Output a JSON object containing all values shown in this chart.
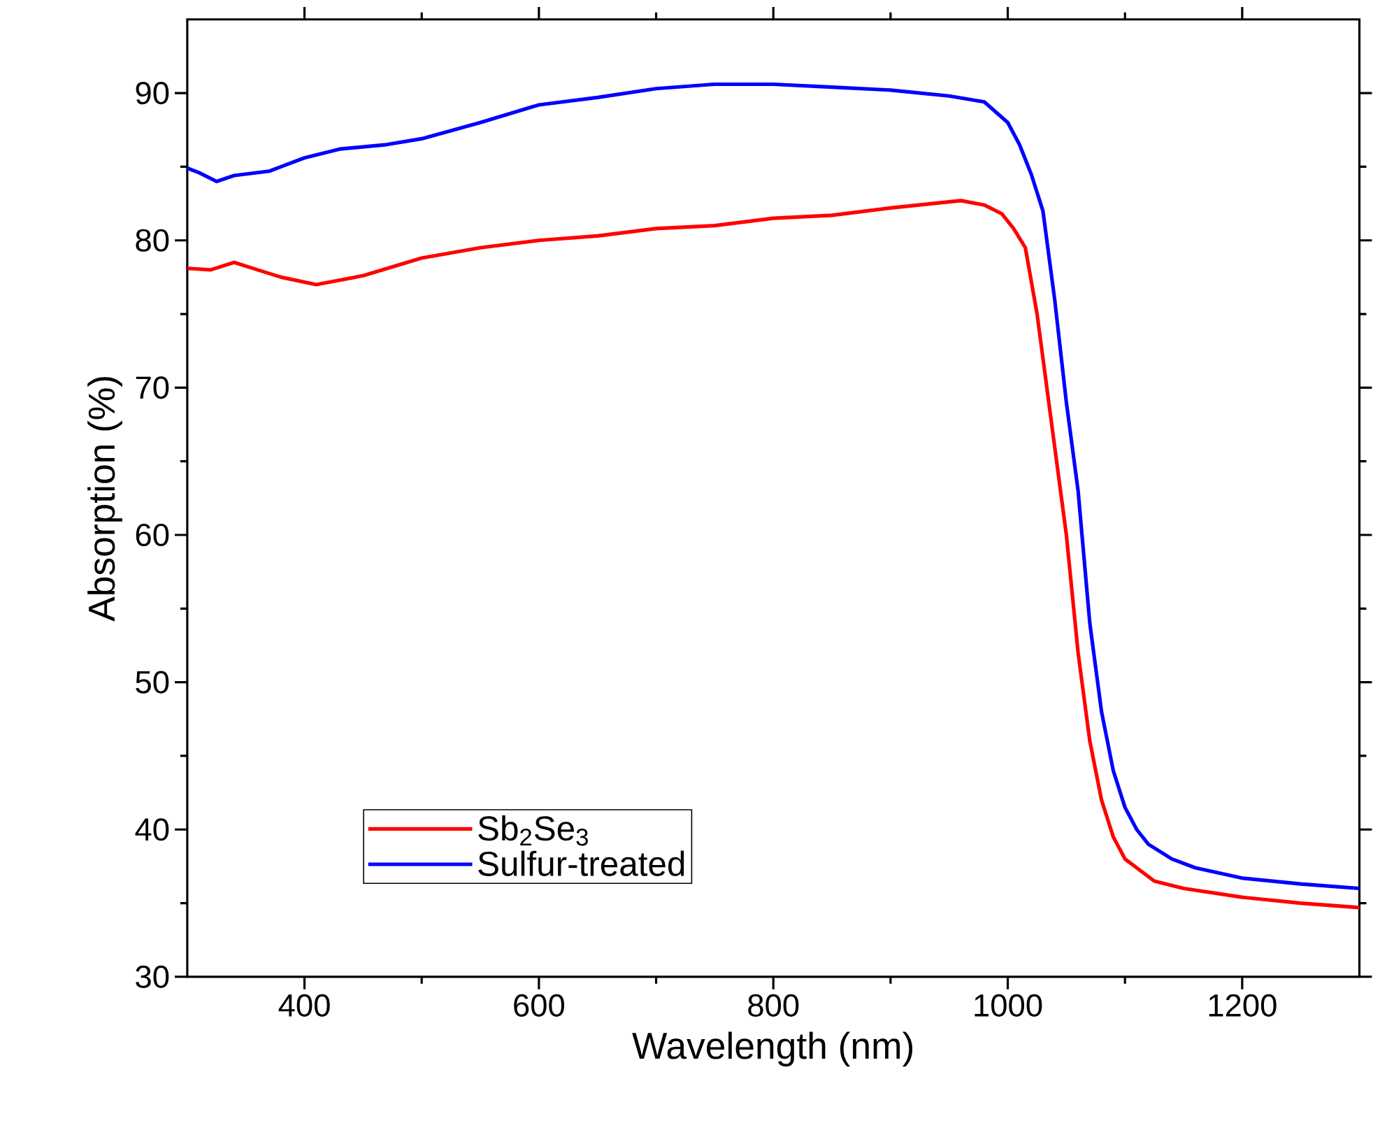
{
  "chart_data": {
    "type": "line",
    "xlabel": "Wavelength (nm)",
    "ylabel": "Absorption (%)",
    "xlim": [
      300,
      1300
    ],
    "ylim": [
      30,
      95
    ],
    "xticks": [
      400,
      600,
      800,
      1000,
      1200
    ],
    "yticks": [
      30,
      40,
      50,
      60,
      70,
      80,
      90
    ],
    "legend": "bottom left",
    "grid": false,
    "marker": "none",
    "line_style": "solid",
    "series": [
      {
        "name": "Sb$_{2}$Se$_{3}$",
        "color": "#ff0000",
        "x": [
          300,
          320,
          340,
          360,
          380,
          410,
          450,
          500,
          550,
          600,
          650,
          700,
          750,
          800,
          850,
          900,
          960,
          980,
          995,
          1005,
          1015,
          1025,
          1035,
          1045,
          1050,
          1060,
          1070,
          1080,
          1090,
          1100,
          1125,
          1150,
          1200,
          1250,
          1300
        ],
        "values": [
          78.1,
          78.0,
          78.5,
          78.0,
          77.5,
          77.0,
          77.6,
          78.8,
          79.5,
          80.0,
          80.3,
          80.8,
          81.0,
          81.5,
          81.7,
          82.2,
          82.7,
          82.4,
          81.8,
          80.8,
          79.5,
          75,
          69,
          63,
          60,
          52,
          46,
          42,
          39.5,
          38,
          36.5,
          36,
          35.4,
          35,
          34.7
        ]
      },
      {
        "name": "Sulfur-treated",
        "color": "#0000ff",
        "x": [
          300,
          310,
          325,
          340,
          370,
          380,
          400,
          430,
          470,
          500,
          550,
          600,
          650,
          700,
          750,
          800,
          850,
          900,
          950,
          980,
          1000,
          1010,
          1020,
          1030,
          1040,
          1050,
          1060,
          1070,
          1080,
          1090,
          1100,
          1110,
          1120,
          1140,
          1160,
          1200,
          1250,
          1300
        ],
        "values": [
          84.9,
          84.6,
          84.0,
          84.4,
          84.7,
          85.0,
          85.6,
          86.2,
          86.5,
          86.9,
          88.0,
          89.2,
          89.7,
          90.3,
          90.6,
          90.6,
          90.4,
          90.2,
          89.8,
          89.4,
          88,
          86.5,
          84.5,
          82,
          76,
          69,
          63,
          54,
          48,
          44,
          41.5,
          40,
          39,
          38,
          37.4,
          36.7,
          36.3,
          36.0
        ]
      }
    ]
  }
}
